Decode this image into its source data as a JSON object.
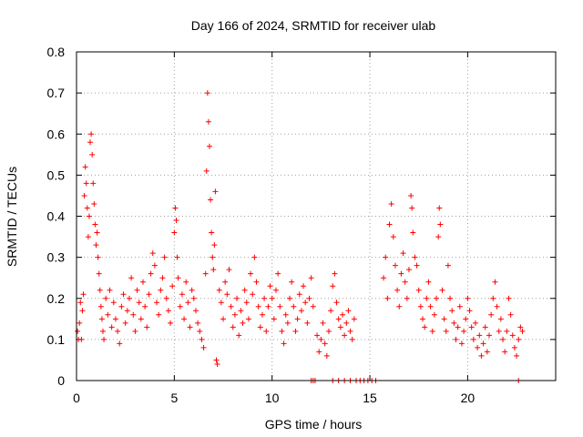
{
  "chart_data": {
    "type": "scatter",
    "title": "Day 166 of 2024, SRMTID for receiver ulab",
    "xlabel": "GPS time / hours",
    "ylabel": "SRMTID / TECUs",
    "xlim": [
      0,
      24.5
    ],
    "ylim": [
      0,
      0.8
    ],
    "x_ticks": [
      0,
      5,
      10,
      15,
      20
    ],
    "y_ticks": [
      0,
      0.1,
      0.2,
      0.3,
      0.4,
      0.5,
      0.6,
      0.7,
      0.8
    ],
    "x_tick_labels": [
      "0",
      "5",
      "10",
      "15",
      "20"
    ],
    "y_tick_labels": [
      "0",
      "0.1",
      "0.2",
      "0.3",
      "0.4",
      "0.5",
      "0.6",
      "0.7",
      "0.8"
    ],
    "grid": true,
    "marker": "plus",
    "series_color": "#ff0000",
    "series": [
      {
        "name": "SRMTID",
        "points": [
          [
            0.05,
            0.12
          ],
          [
            0.1,
            0.1
          ],
          [
            0.15,
            0.14
          ],
          [
            0.2,
            0.19
          ],
          [
            0.25,
            0.1
          ],
          [
            0.3,
            0.17
          ],
          [
            0.35,
            0.21
          ],
          [
            0.4,
            0.45
          ],
          [
            0.45,
            0.52
          ],
          [
            0.5,
            0.48
          ],
          [
            0.55,
            0.42
          ],
          [
            0.6,
            0.35
          ],
          [
            0.65,
            0.4
          ],
          [
            0.7,
            0.58
          ],
          [
            0.75,
            0.6
          ],
          [
            0.8,
            0.55
          ],
          [
            0.85,
            0.48
          ],
          [
            0.9,
            0.43
          ],
          [
            0.95,
            0.38
          ],
          [
            1.0,
            0.33
          ],
          [
            1.05,
            0.36
          ],
          [
            1.1,
            0.3
          ],
          [
            1.15,
            0.26
          ],
          [
            1.2,
            0.22
          ],
          [
            1.25,
            0.18
          ],
          [
            1.3,
            0.15
          ],
          [
            1.35,
            0.12
          ],
          [
            1.4,
            0.1
          ],
          [
            1.5,
            0.2
          ],
          [
            1.6,
            0.16
          ],
          [
            1.7,
            0.22
          ],
          [
            1.8,
            0.13
          ],
          [
            1.9,
            0.19
          ],
          [
            2.0,
            0.15
          ],
          [
            2.1,
            0.12
          ],
          [
            2.2,
            0.09
          ],
          [
            2.3,
            0.18
          ],
          [
            2.4,
            0.21
          ],
          [
            2.5,
            0.14
          ],
          [
            2.6,
            0.17
          ],
          [
            2.7,
            0.2
          ],
          [
            2.8,
            0.25
          ],
          [
            2.9,
            0.16
          ],
          [
            3.0,
            0.12
          ],
          [
            3.1,
            0.22
          ],
          [
            3.2,
            0.19
          ],
          [
            3.3,
            0.15
          ],
          [
            3.4,
            0.24
          ],
          [
            3.5,
            0.18
          ],
          [
            3.6,
            0.13
          ],
          [
            3.7,
            0.21
          ],
          [
            3.8,
            0.26
          ],
          [
            3.9,
            0.31
          ],
          [
            4.0,
            0.28
          ],
          [
            4.1,
            0.19
          ],
          [
            4.2,
            0.16
          ],
          [
            4.3,
            0.22
          ],
          [
            4.4,
            0.25
          ],
          [
            4.5,
            0.3
          ],
          [
            4.6,
            0.2
          ],
          [
            4.7,
            0.17
          ],
          [
            4.8,
            0.14
          ],
          [
            4.9,
            0.23
          ],
          [
            5.0,
            0.36
          ],
          [
            5.05,
            0.42
          ],
          [
            5.1,
            0.39
          ],
          [
            5.15,
            0.3
          ],
          [
            5.2,
            0.25
          ],
          [
            5.3,
            0.18
          ],
          [
            5.4,
            0.21
          ],
          [
            5.5,
            0.15
          ],
          [
            5.6,
            0.24
          ],
          [
            5.7,
            0.19
          ],
          [
            5.8,
            0.13
          ],
          [
            5.9,
            0.22
          ],
          [
            6.0,
            0.2
          ],
          [
            6.1,
            0.17
          ],
          [
            6.2,
            0.14
          ],
          [
            6.3,
            0.12
          ],
          [
            6.4,
            0.1
          ],
          [
            6.5,
            0.08
          ],
          [
            6.6,
            0.26
          ],
          [
            6.65,
            0.51
          ],
          [
            6.7,
            0.7
          ],
          [
            6.75,
            0.63
          ],
          [
            6.8,
            0.57
          ],
          [
            6.85,
            0.44
          ],
          [
            6.9,
            0.36
          ],
          [
            6.95,
            0.3
          ],
          [
            7.0,
            0.27
          ],
          [
            7.05,
            0.33
          ],
          [
            7.1,
            0.46
          ],
          [
            7.15,
            0.05
          ],
          [
            7.2,
            0.04
          ],
          [
            7.3,
            0.22
          ],
          [
            7.4,
            0.19
          ],
          [
            7.5,
            0.15
          ],
          [
            7.6,
            0.24
          ],
          [
            7.7,
            0.21
          ],
          [
            7.8,
            0.27
          ],
          [
            7.9,
            0.18
          ],
          [
            8.0,
            0.13
          ],
          [
            8.1,
            0.16
          ],
          [
            8.2,
            0.2
          ],
          [
            8.3,
            0.11
          ],
          [
            8.4,
            0.17
          ],
          [
            8.5,
            0.14
          ],
          [
            8.6,
            0.22
          ],
          [
            8.7,
            0.19
          ],
          [
            8.8,
            0.15
          ],
          [
            8.9,
            0.26
          ],
          [
            9.0,
            0.21
          ],
          [
            9.1,
            0.3
          ],
          [
            9.2,
            0.24
          ],
          [
            9.3,
            0.18
          ],
          [
            9.4,
            0.13
          ],
          [
            9.5,
            0.16
          ],
          [
            9.6,
            0.2
          ],
          [
            9.7,
            0.12
          ],
          [
            9.8,
            0.18
          ],
          [
            9.9,
            0.23
          ],
          [
            10.0,
            0.2
          ],
          [
            10.1,
            0.15
          ],
          [
            10.2,
            0.22
          ],
          [
            10.3,
            0.26
          ],
          [
            10.4,
            0.18
          ],
          [
            10.5,
            0.12
          ],
          [
            10.6,
            0.09
          ],
          [
            10.7,
            0.16
          ],
          [
            10.8,
            0.14
          ],
          [
            10.9,
            0.2
          ],
          [
            11.0,
            0.24
          ],
          [
            11.1,
            0.18
          ],
          [
            11.2,
            0.12
          ],
          [
            11.3,
            0.15
          ],
          [
            11.4,
            0.21
          ],
          [
            11.5,
            0.17
          ],
          [
            11.6,
            0.23
          ],
          [
            11.7,
            0.19
          ],
          [
            11.8,
            0.14
          ],
          [
            11.9,
            0.2
          ],
          [
            12.0,
            0.25
          ],
          [
            12.1,
            0.18
          ],
          [
            12.3,
            0.11
          ],
          [
            12.4,
            0.07
          ],
          [
            12.5,
            0.1
          ],
          [
            12.6,
            0.14
          ],
          [
            12.7,
            0.09
          ],
          [
            12.8,
            0.06
          ],
          [
            12.9,
            0.12
          ],
          [
            13.0,
            0.17
          ],
          [
            13.1,
            0.23
          ],
          [
            13.2,
            0.26
          ],
          [
            13.3,
            0.19
          ],
          [
            13.4,
            0.15
          ],
          [
            13.5,
            0.13
          ],
          [
            13.6,
            0.16
          ],
          [
            13.7,
            0.11
          ],
          [
            13.8,
            0.14
          ],
          [
            13.9,
            0.17
          ],
          [
            14.0,
            0.12
          ],
          [
            14.1,
            0.1
          ],
          [
            14.2,
            0.15
          ],
          [
            15.7,
            0.25
          ],
          [
            15.8,
            0.3
          ],
          [
            15.9,
            0.2
          ],
          [
            16.0,
            0.38
          ],
          [
            16.1,
            0.43
          ],
          [
            16.2,
            0.35
          ],
          [
            16.3,
            0.28
          ],
          [
            16.4,
            0.22
          ],
          [
            16.5,
            0.18
          ],
          [
            16.6,
            0.26
          ],
          [
            16.7,
            0.31
          ],
          [
            16.8,
            0.24
          ],
          [
            16.9,
            0.2
          ],
          [
            17.0,
            0.27
          ],
          [
            17.1,
            0.45
          ],
          [
            17.15,
            0.42
          ],
          [
            17.2,
            0.36
          ],
          [
            17.3,
            0.3
          ],
          [
            17.4,
            0.28
          ],
          [
            17.5,
            0.22
          ],
          [
            17.6,
            0.18
          ],
          [
            17.7,
            0.15
          ],
          [
            17.8,
            0.13
          ],
          [
            17.9,
            0.2
          ],
          [
            18.0,
            0.24
          ],
          [
            18.1,
            0.18
          ],
          [
            18.2,
            0.12
          ],
          [
            18.3,
            0.16
          ],
          [
            18.4,
            0.2
          ],
          [
            18.5,
            0.35
          ],
          [
            18.55,
            0.42
          ],
          [
            18.6,
            0.38
          ],
          [
            18.7,
            0.22
          ],
          [
            18.8,
            0.15
          ],
          [
            18.9,
            0.12
          ],
          [
            19.0,
            0.28
          ],
          [
            19.1,
            0.2
          ],
          [
            19.2,
            0.17
          ],
          [
            19.3,
            0.14
          ],
          [
            19.4,
            0.1
          ],
          [
            19.5,
            0.13
          ],
          [
            19.6,
            0.18
          ],
          [
            19.7,
            0.09
          ],
          [
            19.8,
            0.12
          ],
          [
            19.9,
            0.15
          ],
          [
            20.0,
            0.2
          ],
          [
            20.1,
            0.17
          ],
          [
            20.2,
            0.13
          ],
          [
            20.3,
            0.1
          ],
          [
            20.4,
            0.14
          ],
          [
            20.5,
            0.08
          ],
          [
            20.6,
            0.11
          ],
          [
            20.7,
            0.06
          ],
          [
            20.8,
            0.09
          ],
          [
            20.9,
            0.13
          ],
          [
            21.0,
            0.07
          ],
          [
            21.1,
            0.11
          ],
          [
            21.2,
            0.16
          ],
          [
            21.3,
            0.2
          ],
          [
            21.4,
            0.24
          ],
          [
            21.5,
            0.18
          ],
          [
            21.6,
            0.12
          ],
          [
            21.7,
            0.15
          ],
          [
            21.8,
            0.1
          ],
          [
            21.9,
            0.07
          ],
          [
            22.0,
            0.12
          ],
          [
            22.1,
            0.2
          ],
          [
            22.2,
            0.16
          ],
          [
            22.3,
            0.11
          ],
          [
            22.4,
            0.08
          ],
          [
            22.5,
            0.06
          ],
          [
            22.6,
            0.1
          ],
          [
            22.7,
            0.13
          ],
          [
            22.8,
            0.12
          ],
          [
            12.0,
            0.0
          ],
          [
            12.1,
            0.0
          ],
          [
            12.2,
            0.0
          ],
          [
            13.1,
            0.0
          ],
          [
            13.4,
            0.0
          ],
          [
            13.7,
            0.0
          ],
          [
            14.0,
            0.0
          ],
          [
            14.3,
            0.0
          ],
          [
            14.5,
            0.0
          ],
          [
            14.7,
            0.0
          ],
          [
            14.9,
            0.0
          ],
          [
            15.1,
            0.0
          ],
          [
            15.3,
            0.0
          ],
          [
            22.6,
            0.0
          ]
        ]
      }
    ]
  }
}
